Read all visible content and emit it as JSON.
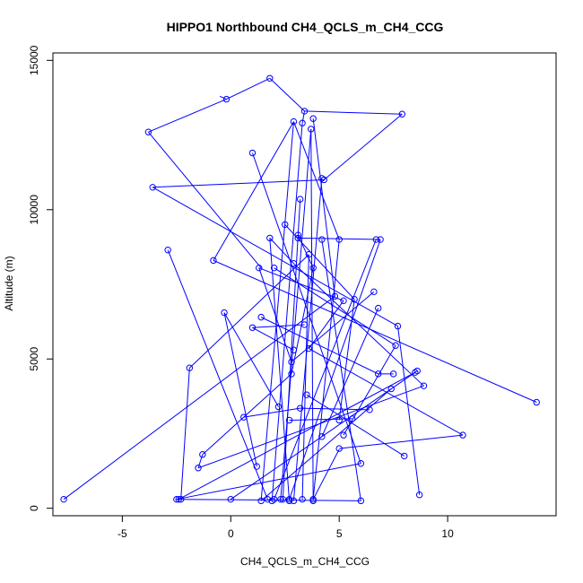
{
  "chart_data": {
    "type": "line",
    "title": "HIPPO1 Northbound CH4_QCLS_m_CH4_CCG",
    "xlabel": "CH4_QCLS_m_CH4_CCG",
    "ylabel": "Altitude (m)",
    "xlim": [
      -8.2,
      15.0
    ],
    "ylim": [
      -250,
      15250
    ],
    "xticks": [
      -5,
      0,
      5,
      10
    ],
    "yticks": [
      0,
      5000,
      10000,
      15000
    ],
    "grid": false,
    "series": [
      {
        "color": "#0000ff",
        "marker": "open-circle",
        "points": [
          [
            -0.2,
            13700
          ],
          [
            1.8,
            14400
          ],
          [
            -3.8,
            12600
          ],
          [
            3.4,
            13300
          ],
          [
            7.9,
            13200
          ],
          [
            2.9,
            12950
          ],
          [
            3.3,
            12900
          ],
          [
            3.7,
            12700
          ],
          [
            3.8,
            13050
          ],
          [
            4.3,
            11000
          ],
          [
            4.2,
            11050
          ],
          [
            -3.6,
            10750
          ],
          [
            1.0,
            11900
          ],
          [
            3.2,
            10350
          ],
          [
            2.5,
            9500
          ],
          [
            3.1,
            9150
          ],
          [
            3.1,
            9050
          ],
          [
            4.2,
            9000
          ],
          [
            5.0,
            9000
          ],
          [
            6.7,
            9000
          ],
          [
            6.9,
            9000
          ],
          [
            1.8,
            9050
          ],
          [
            -2.9,
            8650
          ],
          [
            -0.8,
            8300
          ],
          [
            2.9,
            8200
          ],
          [
            3.6,
            8500
          ],
          [
            3.8,
            8050
          ],
          [
            2.0,
            8050
          ],
          [
            1.3,
            8050
          ],
          [
            4.8,
            7100
          ],
          [
            5.2,
            6950
          ],
          [
            5.7,
            7000
          ],
          [
            6.6,
            7250
          ],
          [
            6.8,
            6700
          ],
          [
            -0.3,
            6550
          ],
          [
            1.4,
            6400
          ],
          [
            1.0,
            6050
          ],
          [
            3.4,
            6150
          ],
          [
            7.7,
            6100
          ],
          [
            3.6,
            5350
          ],
          [
            2.9,
            5300
          ],
          [
            7.6,
            5450
          ],
          [
            2.8,
            4900
          ],
          [
            2.8,
            4500
          ],
          [
            6.8,
            4500
          ],
          [
            7.5,
            4500
          ],
          [
            8.5,
            4550
          ],
          [
            8.6,
            4600
          ],
          [
            8.9,
            4100
          ],
          [
            -1.9,
            4700
          ],
          [
            7.4,
            4000
          ],
          [
            14.1,
            3550
          ],
          [
            3.5,
            3800
          ],
          [
            2.2,
            3400
          ],
          [
            3.2,
            3350
          ],
          [
            6.4,
            3300
          ],
          [
            0.6,
            3050
          ],
          [
            5.0,
            2950
          ],
          [
            5.6,
            3000
          ],
          [
            2.7,
            2950
          ],
          [
            10.7,
            2450
          ],
          [
            5.2,
            2450
          ],
          [
            4.2,
            2400
          ],
          [
            5.0,
            2000
          ],
          [
            -1.3,
            1800
          ],
          [
            8.0,
            1750
          ],
          [
            6.0,
            1500
          ],
          [
            1.2,
            1400
          ],
          [
            -1.5,
            1350
          ],
          [
            8.7,
            450
          ],
          [
            -7.7,
            300
          ],
          [
            -2.5,
            300
          ],
          [
            -2.4,
            300
          ],
          [
            -2.3,
            300
          ],
          [
            0.0,
            300
          ],
          [
            1.4,
            250
          ],
          [
            1.7,
            300
          ],
          [
            1.9,
            250
          ],
          [
            2.0,
            300
          ],
          [
            2.3,
            300
          ],
          [
            2.4,
            300
          ],
          [
            2.7,
            300
          ],
          [
            2.7,
            250
          ],
          [
            2.9,
            250
          ],
          [
            3.3,
            300
          ],
          [
            3.8,
            250
          ],
          [
            3.8,
            300
          ],
          [
            6.0,
            250
          ]
        ],
        "segments": [
          [
            [
              -0.2,
              13700
            ],
            [
              1.8,
              14400
            ]
          ],
          [
            [
              -0.2,
              13700
            ],
            [
              -0.5,
              13800
            ]
          ],
          [
            [
              -3.8,
              12600
            ],
            [
              -0.2,
              13700
            ]
          ],
          [
            [
              -3.8,
              12600
            ],
            [
              1.4,
              8050
            ]
          ],
          [
            [
              3.4,
              13300
            ],
            [
              7.9,
              13200
            ]
          ],
          [
            [
              3.4,
              13300
            ],
            [
              1.8,
              14400
            ]
          ],
          [
            [
              7.9,
              13200
            ],
            [
              4.3,
              11000
            ]
          ],
          [
            [
              3.4,
              13300
            ],
            [
              3.3,
              12900
            ]
          ],
          [
            [
              2.9,
              12950
            ],
            [
              -0.8,
              8300
            ]
          ],
          [
            [
              2.9,
              12950
            ],
            [
              5.0,
              9000
            ]
          ],
          [
            [
              2.9,
              12950
            ],
            [
              1.4,
              250
            ]
          ],
          [
            [
              3.3,
              12900
            ],
            [
              1.9,
              250
            ]
          ],
          [
            [
              3.7,
              12700
            ],
            [
              3.8,
              250
            ]
          ],
          [
            [
              3.8,
              13050
            ],
            [
              4.8,
              7100
            ]
          ],
          [
            [
              3.7,
              12700
            ],
            [
              2.3,
              300
            ]
          ],
          [
            [
              4.3,
              11000
            ],
            [
              -3.6,
              10750
            ]
          ],
          [
            [
              4.2,
              11050
            ],
            [
              2.9,
              250
            ]
          ],
          [
            [
              -3.6,
              10750
            ],
            [
              7.7,
              6100
            ]
          ],
          [
            [
              1.0,
              11900
            ],
            [
              6.0,
              1500
            ]
          ],
          [
            [
              3.2,
              10350
            ],
            [
              2.4,
              300
            ]
          ],
          [
            [
              2.5,
              9500
            ],
            [
              5.7,
              7000
            ]
          ],
          [
            [
              3.1,
              9150
            ],
            [
              3.8,
              8050
            ]
          ],
          [
            [
              3.1,
              9050
            ],
            [
              6.9,
              9000
            ]
          ],
          [
            [
              4.2,
              9000
            ],
            [
              6.0,
              250
            ]
          ],
          [
            [
              5.0,
              9000
            ],
            [
              3.8,
              300
            ]
          ],
          [
            [
              6.7,
              9000
            ],
            [
              2.0,
              300
            ]
          ],
          [
            [
              6.9,
              9000
            ],
            [
              2.7,
              300
            ]
          ],
          [
            [
              1.8,
              9050
            ],
            [
              2.9,
              8200
            ]
          ],
          [
            [
              1.8,
              9050
            ],
            [
              2.7,
              250
            ]
          ],
          [
            [
              -2.9,
              8650
            ],
            [
              1.7,
              300
            ]
          ],
          [
            [
              -0.8,
              8300
            ],
            [
              14.1,
              3550
            ]
          ],
          [
            [
              2.9,
              8200
            ],
            [
              8.9,
              4100
            ]
          ],
          [
            [
              3.6,
              8500
            ],
            [
              -1.9,
              4700
            ]
          ],
          [
            [
              3.6,
              8500
            ],
            [
              3.3,
              300
            ]
          ],
          [
            [
              3.8,
              8050
            ],
            [
              2.8,
              4500
            ]
          ],
          [
            [
              2.0,
              8050
            ],
            [
              7.6,
              5450
            ]
          ],
          [
            [
              1.3,
              8050
            ],
            [
              5.2,
              6950
            ]
          ],
          [
            [
              1.3,
              8050
            ],
            [
              2.8,
              4900
            ]
          ],
          [
            [
              4.8,
              7100
            ],
            [
              -7.7,
              300
            ]
          ],
          [
            [
              5.2,
              6950
            ],
            [
              3.6,
              5350
            ]
          ],
          [
            [
              5.7,
              7000
            ],
            [
              5.0,
              2950
            ]
          ],
          [
            [
              6.6,
              7250
            ],
            [
              2.8,
              4900
            ]
          ],
          [
            [
              6.8,
              6700
            ],
            [
              4.2,
              2400
            ]
          ],
          [
            [
              -0.3,
              6550
            ],
            [
              2.2,
              3400
            ]
          ],
          [
            [
              -0.3,
              6550
            ],
            [
              1.2,
              1400
            ]
          ],
          [
            [
              1.4,
              6400
            ],
            [
              6.8,
              4500
            ]
          ],
          [
            [
              1.0,
              6050
            ],
            [
              2.9,
              5300
            ]
          ],
          [
            [
              3.4,
              6150
            ],
            [
              1.0,
              6050
            ]
          ],
          [
            [
              7.7,
              6100
            ],
            [
              8.7,
              450
            ]
          ],
          [
            [
              3.6,
              5350
            ],
            [
              10.7,
              2450
            ]
          ],
          [
            [
              7.6,
              5450
            ],
            [
              5.2,
              2450
            ]
          ],
          [
            [
              2.8,
              4500
            ],
            [
              -1.3,
              1800
            ]
          ],
          [
            [
              6.8,
              4500
            ],
            [
              7.5,
              4500
            ]
          ],
          [
            [
              8.6,
              4600
            ],
            [
              0.0,
              300
            ]
          ],
          [
            [
              8.5,
              4550
            ],
            [
              -2.4,
              300
            ]
          ],
          [
            [
              8.9,
              4100
            ],
            [
              -1.5,
              1350
            ]
          ],
          [
            [
              -1.9,
              4700
            ],
            [
              -2.3,
              300
            ]
          ],
          [
            [
              7.4,
              4000
            ],
            [
              1.4,
              250
            ]
          ],
          [
            [
              3.5,
              3800
            ],
            [
              8.0,
              1750
            ]
          ],
          [
            [
              3.2,
              3350
            ],
            [
              6.4,
              3300
            ]
          ],
          [
            [
              0.6,
              3050
            ],
            [
              3.2,
              3350
            ]
          ],
          [
            [
              5.6,
              3000
            ],
            [
              2.7,
              2950
            ]
          ],
          [
            [
              5.0,
              1975
            ],
            [
              3.8,
              300
            ]
          ],
          [
            [
              10.7,
              2450
            ],
            [
              5.0,
              2000
            ]
          ],
          [
            [
              6.0,
              1500
            ],
            [
              -2.5,
              300
            ]
          ],
          [
            [
              -2.5,
              300
            ],
            [
              6.0,
              250
            ]
          ],
          [
            [
              -1.5,
              1350
            ],
            [
              -1.3,
              1800
            ]
          ]
        ]
      }
    ]
  }
}
